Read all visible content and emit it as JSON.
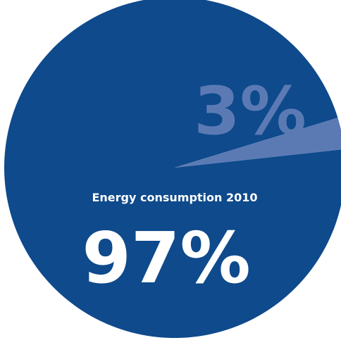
{
  "chart_data": {
    "type": "pie",
    "title": "Energy consumption 2010",
    "slices": [
      {
        "label": "97%",
        "value": 97,
        "color": "#0e4a8c"
      },
      {
        "label": "3%",
        "value": 3,
        "color": "#5b7ab4"
      }
    ],
    "legend": "none"
  },
  "colors": {
    "main_slice": "#0e4a8c",
    "minor_slice": "#5b7ab4",
    "minor_label": "#5b7ab4",
    "text": "#ffffff"
  }
}
